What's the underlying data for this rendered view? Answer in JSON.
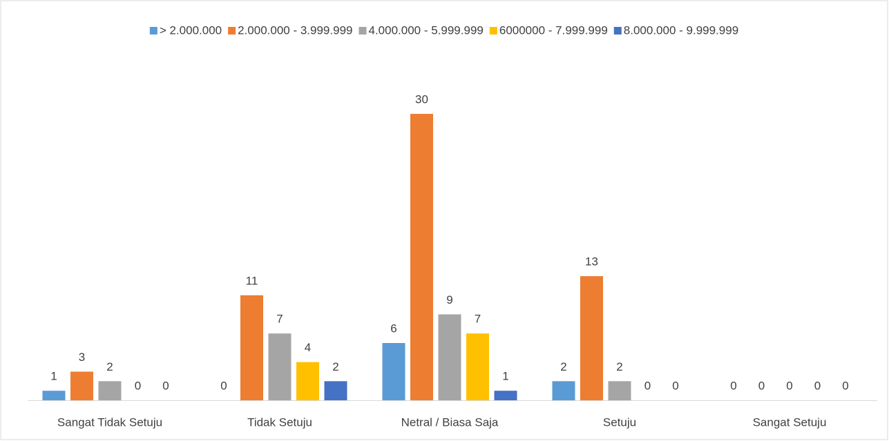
{
  "chart_data": {
    "type": "bar",
    "categories": [
      "Sangat Tidak Setuju",
      "Tidak Setuju",
      "Netral / Biasa Saja",
      "Setuju",
      "Sangat Setuju"
    ],
    "series": [
      {
        "name": "> 2.000.000",
        "color": "#5b9bd5",
        "values": [
          1,
          0,
          6,
          2,
          0
        ]
      },
      {
        "name": "2.000.000 - 3.999.999",
        "color": "#ed7d31",
        "values": [
          3,
          11,
          30,
          13,
          0
        ]
      },
      {
        "name": "4.000.000 - 5.999.999",
        "color": "#a5a5a5",
        "values": [
          2,
          7,
          9,
          2,
          0
        ]
      },
      {
        "name": "6000000 - 7.999.999",
        "color": "#ffc000",
        "values": [
          0,
          4,
          7,
          0,
          0
        ]
      },
      {
        "name": "8.000.000 - 9.999.999",
        "color": "#4472c4",
        "values": [
          0,
          2,
          1,
          0,
          0
        ]
      }
    ],
    "ylim": [
      0,
      30
    ],
    "legend": "top"
  }
}
